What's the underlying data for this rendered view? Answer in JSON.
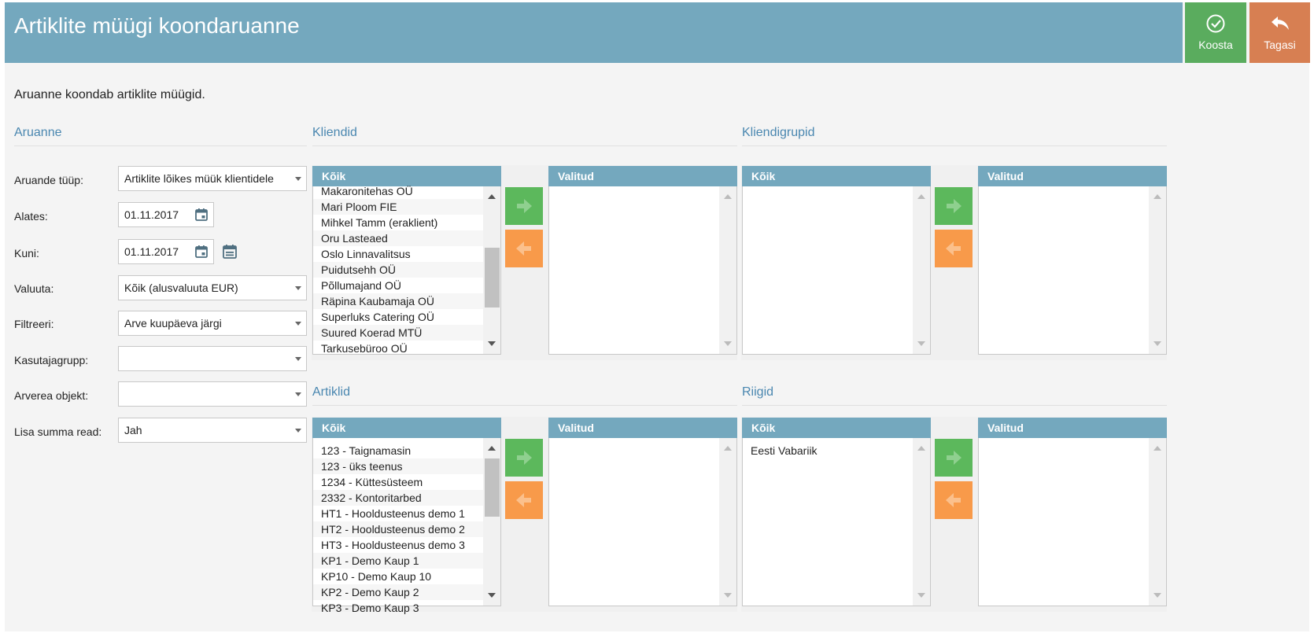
{
  "header": {
    "title": "Artiklite müügi koondaruanne",
    "koosta_label": "Koosta",
    "tagasi_label": "Tagasi"
  },
  "intro_text": "Aruanne koondab artiklite müügid.",
  "aruanne": {
    "section_title": "Aruanne",
    "fields": {
      "tyyp": {
        "label": "Aruande tüüp:",
        "value": "Artiklite lõikes müük klientidele"
      },
      "alates": {
        "label": "Alates:",
        "value": "01.11.2017"
      },
      "kuni": {
        "label": "Kuni:",
        "value": "01.11.2017"
      },
      "valuuta": {
        "label": "Valuuta:",
        "value": "Kõik (alusvaluuta EUR)"
      },
      "filtreeri": {
        "label": "Filtreeri:",
        "value": "Arve kuupäeva järgi"
      },
      "kasutajagrupp": {
        "label": "Kasutajagrupp:",
        "value": ""
      },
      "arverea_objekt": {
        "label": "Arverea objekt:",
        "value": ""
      },
      "summa_read": {
        "label": "Lisa summa read:",
        "value": "Jah"
      }
    }
  },
  "kliendid": {
    "section_title": "Kliendid",
    "all_header": "Kõik",
    "selected_header": "Valitud",
    "items": [
      "Makaronitehas OÜ",
      "Mari Ploom FIE",
      "Mihkel Tamm (eraklient)",
      "Oru Lasteaed",
      "Oslo Linnavalitsus",
      "Puidutsehh OÜ",
      "Põllumajand OÜ",
      "Räpina Kaubamaja OÜ",
      "Superluks Catering OÜ",
      "Suured Koerad MTÜ",
      "Tarkusebüroo OÜ"
    ]
  },
  "kliendigrupid": {
    "section_title": "Kliendigrupid",
    "all_header": "Kõik",
    "selected_header": "Valitud",
    "items": []
  },
  "artiklid": {
    "section_title": "Artiklid",
    "all_header": "Kõik",
    "selected_header": "Valitud",
    "items": [
      "123 - Taignamasin",
      "123 - üks teenus",
      "1234 - Küttesüsteem",
      "2332 - Kontoritarbed",
      "HT1 - Hooldusteenus demo 1",
      "HT2 - Hooldusteenus demo 2",
      "HT3 - Hooldusteenus demo 3",
      "KP1 - Demo Kaup 1",
      "KP10 - Demo Kaup 10",
      "KP2 - Demo Kaup 2",
      "KP3 - Demo Kaup 3"
    ]
  },
  "riigid": {
    "section_title": "Riigid",
    "all_header": "Kõik",
    "selected_header": "Valitud",
    "items": [
      "Eesti Vabariik"
    ]
  },
  "icons": {
    "koosta": "check-circle-icon",
    "tagasi": "reply-arrow-icon",
    "calendar": "calendar-icon",
    "move_right": "arrow-right-icon",
    "move_left": "arrow-left-icon"
  },
  "colors": {
    "header_bg": "#74a8be",
    "koosta_bg": "#5aac5e",
    "tagasi_bg": "#d77f52",
    "section_title": "#4a87b0",
    "move_right_bg": "#5cb85c",
    "move_left_bg": "#f89a4a"
  }
}
